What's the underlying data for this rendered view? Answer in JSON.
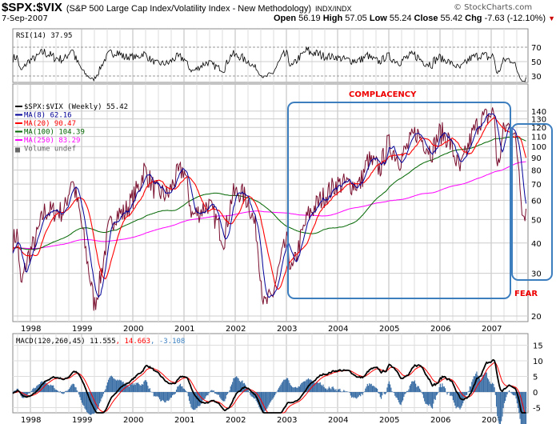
{
  "header": {
    "symbol": "$SPX:$VIX",
    "description": "(S&P 500 Large Cap Index/Volatility Index - New Methodology)",
    "exchange": "INDX/INDX",
    "copyright": "© StockCharts.com",
    "date": "7-Sep-2007",
    "open_label": "Open",
    "open": "56.19",
    "high_label": "High",
    "high": "57.05",
    "low_label": "Low",
    "low": "55.24",
    "close_label": "Close",
    "close": "55.42",
    "chg_label": "Chg",
    "chg": "-7.63 (-12.10%)",
    "chg_arrow": "▼",
    "down_color": "#cc0000"
  },
  "rsi": {
    "label": "RSI(14) 37.95",
    "ticks": [
      70,
      50,
      30
    ]
  },
  "legend": [
    {
      "text": "$SPX:$VIX (Weekly) 55.42",
      "color": "#000000"
    },
    {
      "text": "MA(8) 62.16",
      "color": "#000099"
    },
    {
      "text": "MA(20) 90.47",
      "color": "#ff0000"
    },
    {
      "text": "MA(100) 104.39",
      "color": "#006600"
    },
    {
      "text": "MA(250) 83.29",
      "color": "#ff00ff"
    },
    {
      "text": "Volume undef",
      "color": "#666666"
    }
  ],
  "annotations": {
    "complacency": "COMPLACENCY",
    "fear": "FEAR",
    "box_color": "#3d7ebf",
    "text_color": "#ee0000"
  },
  "macd": {
    "label": "MACD(120,260,45)",
    "macd": "11.555",
    "signal": "14.663",
    "hist": "-3.108",
    "ticks": [
      15,
      10,
      5,
      0,
      -5
    ]
  },
  "chart_data": {
    "type": "line",
    "title": "$SPX:$VIX (Weekly)",
    "scale": "log",
    "ylim": [
      20,
      150
    ],
    "yticks": [
      140,
      130,
      120,
      110,
      100,
      90,
      80,
      70,
      60,
      50,
      40,
      30,
      20
    ],
    "xticks": [
      "1998",
      "1999",
      "2000",
      "2001",
      "2002",
      "2003",
      "2004",
      "2005",
      "2006",
      "2007"
    ],
    "xlim": [
      1997.66,
      2007.69
    ],
    "price_anchors": [
      [
        1997.66,
        41
      ],
      [
        1997.75,
        44
      ],
      [
        1997.81,
        26
      ],
      [
        1997.95,
        35
      ],
      [
        1998.1,
        41
      ],
      [
        1998.27,
        54
      ],
      [
        1998.5,
        54
      ],
      [
        1998.66,
        54
      ],
      [
        1998.81,
        75
      ],
      [
        1998.97,
        52
      ],
      [
        1999.12,
        33
      ],
      [
        1999.25,
        22
      ],
      [
        1999.36,
        28
      ],
      [
        1999.52,
        45
      ],
      [
        1999.67,
        53
      ],
      [
        1999.83,
        53
      ],
      [
        1999.98,
        60
      ],
      [
        2000.14,
        70
      ],
      [
        2000.22,
        81
      ],
      [
        2000.45,
        65
      ],
      [
        2000.69,
        63
      ],
      [
        2000.84,
        75
      ],
      [
        2001.0,
        81
      ],
      [
        2001.16,
        52
      ],
      [
        2001.31,
        54
      ],
      [
        2001.47,
        58
      ],
      [
        2001.62,
        50
      ],
      [
        2001.78,
        41
      ],
      [
        2001.94,
        63
      ],
      [
        2002.09,
        65
      ],
      [
        2002.25,
        60
      ],
      [
        2002.41,
        45
      ],
      [
        2002.56,
        22
      ],
      [
        2002.72,
        24
      ],
      [
        2002.88,
        33
      ],
      [
        2003.0,
        41
      ],
      [
        2003.11,
        30
      ],
      [
        2003.27,
        41
      ],
      [
        2003.42,
        52
      ],
      [
        2003.66,
        60
      ],
      [
        2003.97,
        70
      ],
      [
        2004.2,
        70
      ],
      [
        2004.44,
        70
      ],
      [
        2004.59,
        88
      ],
      [
        2004.83,
        81
      ],
      [
        2004.98,
        103
      ],
      [
        2005.22,
        88
      ],
      [
        2005.53,
        115
      ],
      [
        2005.84,
        95
      ],
      [
        2006.0,
        115
      ],
      [
        2006.16,
        108
      ],
      [
        2006.39,
        79
      ],
      [
        2006.63,
        112
      ],
      [
        2006.78,
        129
      ],
      [
        2006.94,
        133
      ],
      [
        2007.06,
        139
      ],
      [
        2007.12,
        79
      ],
      [
        2007.25,
        119
      ],
      [
        2007.41,
        123
      ],
      [
        2007.53,
        88
      ],
      [
        2007.62,
        52
      ],
      [
        2007.69,
        55.42
      ]
    ],
    "series": [
      {
        "name": "$SPX:$VIX",
        "color": "#000000"
      },
      {
        "name": "MA(8)",
        "period": 8,
        "color": "#000099"
      },
      {
        "name": "MA(20)",
        "period": 20,
        "color": "#ff0000"
      },
      {
        "name": "MA(100)",
        "period": 100,
        "color": "#006600"
      },
      {
        "name": "MA(250)",
        "period": 250,
        "color": "#ff00ff"
      }
    ]
  }
}
